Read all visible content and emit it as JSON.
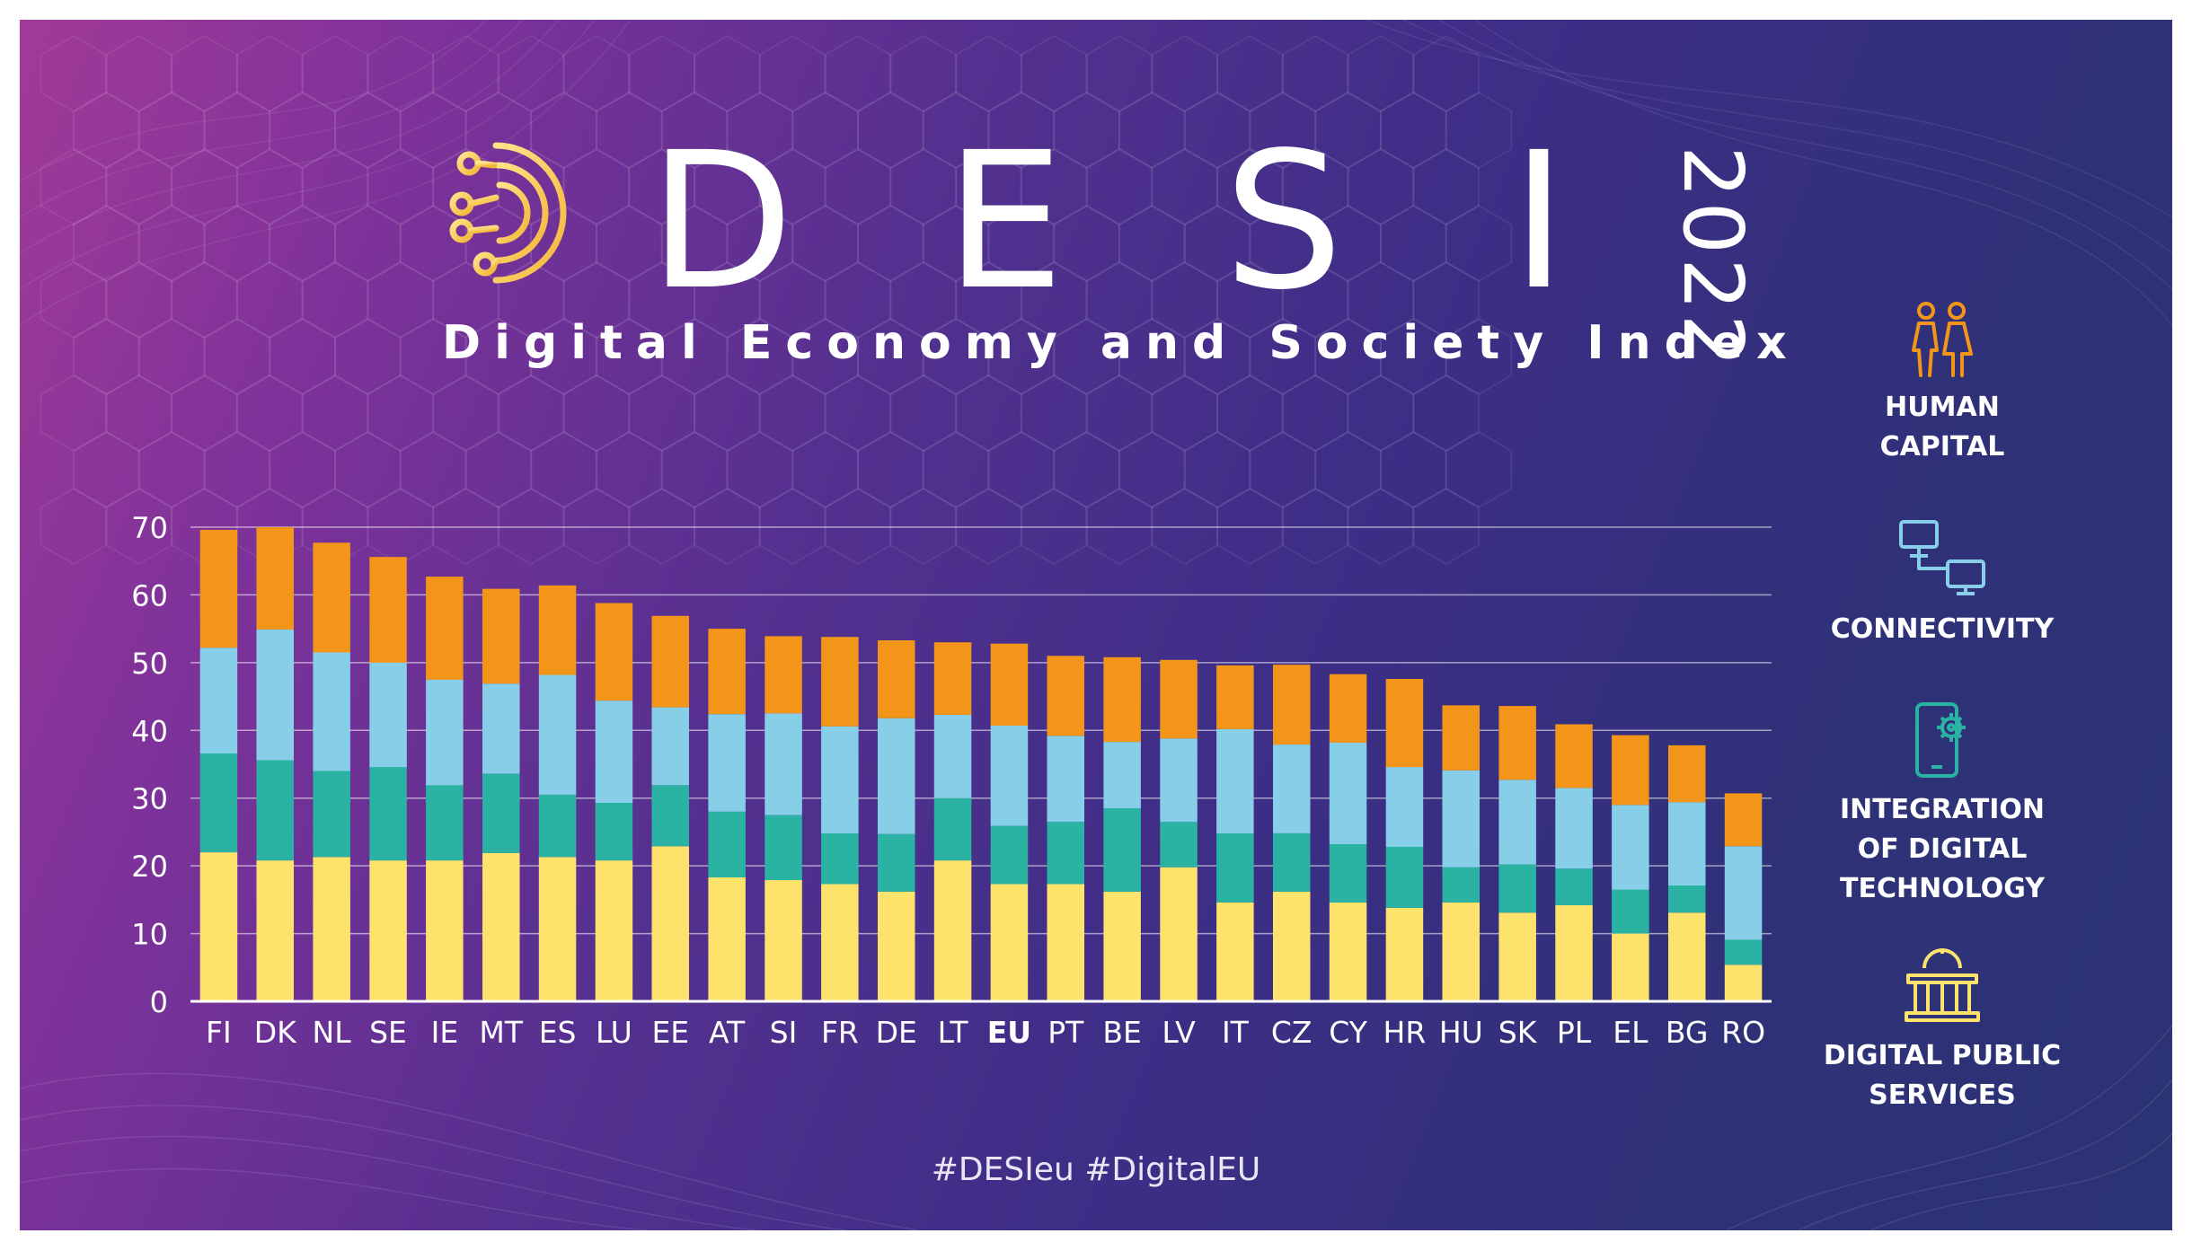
{
  "header": {
    "title_letters": [
      "D",
      "E",
      "S",
      "I"
    ],
    "year": "2022",
    "subtitle": "Digital Economy and Society Index"
  },
  "legend": [
    {
      "label": "HUMAN\nCAPITAL",
      "icon": "people-icon",
      "color": "#f39519"
    },
    {
      "label": "CONNECTIVITY",
      "icon": "network-icon",
      "color": "#87cfe9"
    },
    {
      "label": "INTEGRATION\nOF DIGITAL\nTECHNOLOGY",
      "icon": "phone-gear-icon",
      "color": "#2ab3a3"
    },
    {
      "label": "DIGITAL PUBLIC\nSERVICES",
      "icon": "building-icon",
      "color": "#fde36c"
    }
  ],
  "footer": {
    "hashtags": "#DESIeu #DigitalEU"
  },
  "chart_data": {
    "type": "bar",
    "stacked": true,
    "title": "",
    "xlabel": "",
    "ylabel": "",
    "ylim": [
      0,
      70
    ],
    "yticks": [
      0,
      10,
      20,
      30,
      40,
      50,
      60,
      70
    ],
    "grid": true,
    "categories": [
      "FI",
      "DK",
      "NL",
      "SE",
      "IE",
      "MT",
      "ES",
      "LU",
      "EE",
      "AT",
      "SI",
      "FR",
      "DE",
      "LT",
      "EU",
      "PT",
      "BE",
      "LV",
      "IT",
      "CZ",
      "CY",
      "HR",
      "HU",
      "SK",
      "PL",
      "EL",
      "BG",
      "RO"
    ],
    "highlight_category": "EU",
    "series": [
      {
        "name": "Digital public services",
        "color": "#fde36c",
        "values": [
          22,
          20.8,
          21.3,
          20.8,
          20.8,
          21.9,
          21.3,
          20.8,
          22.9,
          18.3,
          17.9,
          17.3,
          16.2,
          20.8,
          17.3,
          17.3,
          16.2,
          19.8,
          14.6,
          16.2,
          14.6,
          13.8,
          14.6,
          13.1,
          14.2,
          10,
          13.1,
          5.4
        ]
      },
      {
        "name": "Integration of digital technology",
        "color": "#2ab3a3",
        "values": [
          14.6,
          14.8,
          12.7,
          13.8,
          11.1,
          11.7,
          9.2,
          8.5,
          9,
          9.7,
          9.6,
          7.5,
          8.5,
          9.2,
          8.6,
          9.2,
          12.3,
          6.7,
          10.2,
          8.6,
          8.6,
          9,
          5.2,
          7.1,
          5.4,
          6.5,
          4,
          3.7
        ]
      },
      {
        "name": "Connectivity",
        "color": "#87cfe9",
        "values": [
          15.6,
          19.3,
          17.5,
          15.4,
          15.6,
          13.3,
          17.7,
          15.1,
          11.5,
          14.4,
          15,
          15.8,
          17.1,
          12.3,
          14.8,
          12.7,
          9.8,
          12.3,
          15.4,
          13.1,
          15,
          11.8,
          14.3,
          12.5,
          11.9,
          12.5,
          12.3,
          13.8
        ]
      },
      {
        "name": "Human capital",
        "color": "#f39519",
        "values": [
          17.4,
          15.1,
          16.2,
          15.6,
          15.2,
          14,
          13.2,
          14.4,
          13.5,
          12.6,
          11.4,
          13.2,
          11.5,
          10.7,
          12.1,
          11.8,
          12.5,
          11.6,
          9.4,
          11.8,
          10.1,
          13,
          9.6,
          10.9,
          9.4,
          10.3,
          8.4,
          7.8
        ]
      }
    ]
  }
}
